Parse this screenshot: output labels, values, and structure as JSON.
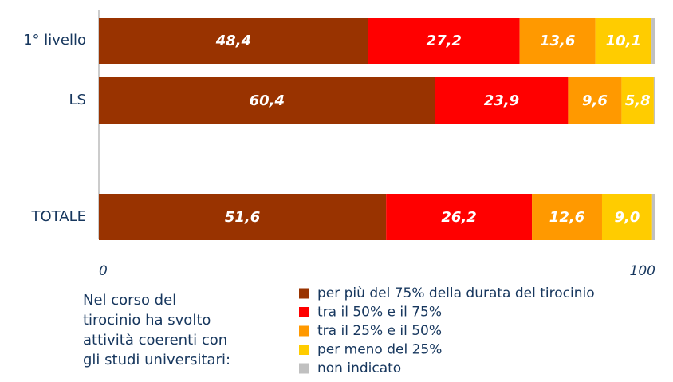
{
  "chart_data": {
    "type": "stacked_bar_horizontal",
    "categories": [
      "1° livello",
      "LS",
      "TOTALE"
    ],
    "series": [
      {
        "name": "per più del 75% della durata del tirocinio",
        "color": "#993300",
        "values": [
          48.4,
          60.4,
          51.6
        ],
        "value_labels": [
          "48,4",
          "60,4",
          "51,6"
        ]
      },
      {
        "name": "tra il 50% e il 75%",
        "color": "#ff0000",
        "values": [
          27.2,
          23.9,
          26.2
        ],
        "value_labels": [
          "27,2",
          "23,9",
          "26,2"
        ]
      },
      {
        "name": "tra il 25% e il 50%",
        "color": "#ff9900",
        "values": [
          13.6,
          9.6,
          12.6
        ],
        "value_labels": [
          "13,6",
          "9,6",
          "12,6"
        ]
      },
      {
        "name": "per meno del 25%",
        "color": "#ffcc00",
        "values": [
          10.1,
          5.8,
          9.0
        ],
        "value_labels": [
          "10,1",
          "5,8",
          "9,0"
        ]
      },
      {
        "name": "non indicato",
        "color": "#c0c0c0",
        "values": [
          0.7,
          0.3,
          0.6
        ]
      }
    ],
    "xlim": [
      0,
      100
    ],
    "xticks": [
      0,
      100
    ],
    "legend_title": [
      "Nel corso del",
      "tirocinio ha svolto",
      "attività coerenti con",
      "gli studi universitari:"
    ]
  }
}
